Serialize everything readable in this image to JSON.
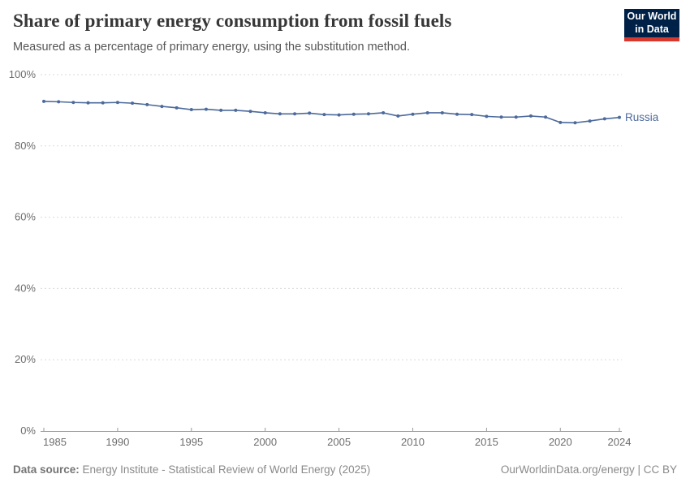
{
  "header": {
    "title": "Share of primary energy consumption from fossil fuels",
    "subtitle": "Measured as a percentage of primary energy, using the substitution method."
  },
  "logo": {
    "line1": "Our World",
    "line2": "in Data",
    "bg_color": "#002147",
    "accent_color": "#d7382d"
  },
  "chart_data": {
    "type": "line",
    "title": "Share of primary energy consumption from fossil fuels",
    "subtitle": "Measured as a percentage of primary energy, using the substitution method.",
    "xlabel": "",
    "ylabel": "",
    "xlim": [
      1985,
      2024
    ],
    "ylim": [
      0,
      100
    ],
    "x_ticks": [
      1985,
      1990,
      1995,
      2000,
      2005,
      2010,
      2015,
      2020,
      2024
    ],
    "y_ticks": [
      0,
      20,
      40,
      60,
      80,
      100
    ],
    "y_tick_suffix": "%",
    "grid": "horizontal-dashed",
    "legend_position": "end-of-line-label",
    "series": [
      {
        "name": "Russia",
        "color": "#4c6a9c",
        "x": [
          1985,
          1986,
          1987,
          1988,
          1989,
          1990,
          1991,
          1992,
          1993,
          1994,
          1995,
          1996,
          1997,
          1998,
          1999,
          2000,
          2001,
          2002,
          2003,
          2004,
          2005,
          2006,
          2007,
          2008,
          2009,
          2010,
          2011,
          2012,
          2013,
          2014,
          2015,
          2016,
          2017,
          2018,
          2019,
          2020,
          2021,
          2022,
          2023,
          2024
        ],
        "values": [
          92.5,
          92.4,
          92.2,
          92.1,
          92.1,
          92.2,
          92.0,
          91.6,
          91.1,
          90.7,
          90.2,
          90.3,
          90.0,
          90.0,
          89.7,
          89.3,
          89.0,
          89.0,
          89.2,
          88.8,
          88.7,
          88.9,
          89.0,
          89.3,
          88.4,
          88.9,
          89.3,
          89.3,
          88.9,
          88.8,
          88.3,
          88.1,
          88.1,
          88.4,
          88.1,
          86.6,
          86.5,
          87.0,
          87.6,
          88.0
        ]
      }
    ],
    "colors": {
      "line": "#4c6a9c",
      "grid": "#dadada",
      "axis": "#999999",
      "tick_label": "#6e6e6e"
    }
  },
  "footer": {
    "datasource_label": "Data source:",
    "datasource_text": "Energy Institute - Statistical Review of World Energy (2025)",
    "link_text": "OurWorldinData.org/energy | CC BY"
  }
}
